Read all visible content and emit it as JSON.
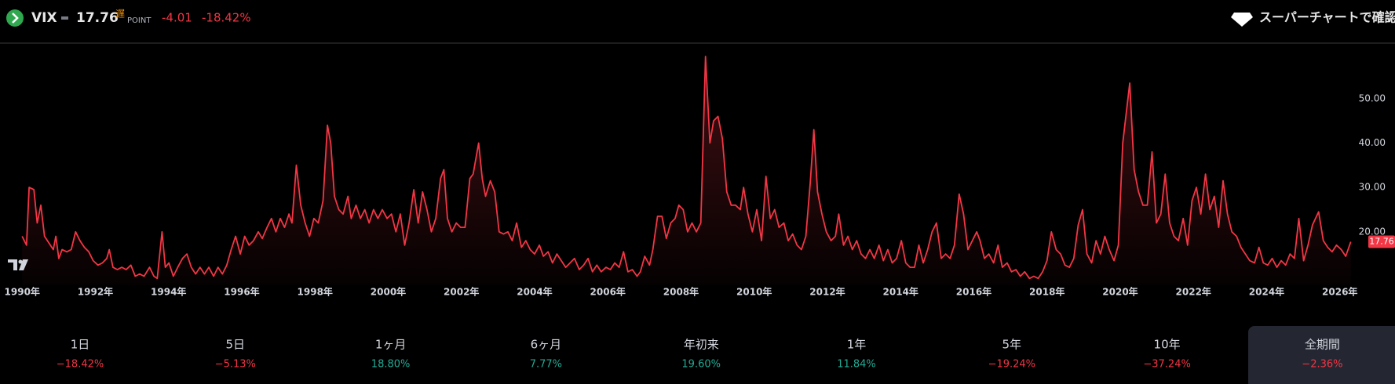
{
  "header": {
    "symbol": "VIX",
    "price": "17.76",
    "delay_badge": "遅",
    "unit": "POINT",
    "change": "-4.01",
    "change_percent": "-18.42%",
    "link": "スーパーチャートで確認"
  },
  "chart_data": {
    "type": "line",
    "x": [
      1990.0,
      1990.12,
      1990.19,
      1990.32,
      1990.41,
      1990.51,
      1990.61,
      1990.73,
      1990.85,
      1990.92,
      1991.0,
      1991.09,
      1991.22,
      1991.34,
      1991.46,
      1991.58,
      1991.7,
      1991.82,
      1991.94,
      1992.07,
      1992.19,
      1992.31,
      1992.38,
      1992.48,
      1992.6,
      1992.72,
      1992.84,
      1992.97,
      1993.09,
      1993.21,
      1993.33,
      1993.48,
      1993.6,
      1993.69,
      1993.82,
      1993.91,
      1994.01,
      1994.13,
      1994.25,
      1994.38,
      1994.5,
      1994.62,
      1994.74,
      1994.86,
      1994.98,
      1995.1,
      1995.23,
      1995.35,
      1995.47,
      1995.59,
      1995.71,
      1995.83,
      1995.96,
      1996.08,
      1996.2,
      1996.32,
      1996.45,
      1996.56,
      1996.69,
      1996.81,
      1996.93,
      1997.05,
      1997.17,
      1997.29,
      1997.37,
      1997.49,
      1997.61,
      1997.73,
      1997.85,
      1997.97,
      1998.09,
      1998.22,
      1998.34,
      1998.43,
      1998.53,
      1998.65,
      1998.77,
      1998.9,
      1998.99,
      1999.12,
      1999.24,
      1999.36,
      1999.48,
      1999.6,
      1999.72,
      1999.84,
      1999.97,
      2000.09,
      2000.21,
      2000.33,
      2000.45,
      2000.57,
      2000.7,
      2000.82,
      2000.94,
      2001.06,
      2001.18,
      2001.3,
      2001.43,
      2001.52,
      2001.62,
      2001.74,
      2001.86,
      2001.98,
      2002.1,
      2002.23,
      2002.32,
      2002.47,
      2002.57,
      2002.66,
      2002.79,
      2002.91,
      2003.03,
      2003.15,
      2003.27,
      2003.39,
      2003.51,
      2003.64,
      2003.76,
      2003.88,
      2004.0,
      2004.13,
      2004.24,
      2004.37,
      2004.49,
      2004.61,
      2004.73,
      2004.85,
      2004.97,
      2005.09,
      2005.22,
      2005.34,
      2005.46,
      2005.58,
      2005.7,
      2005.82,
      2005.95,
      2006.07,
      2006.19,
      2006.31,
      2006.43,
      2006.55,
      2006.67,
      2006.8,
      2006.89,
      2007.01,
      2007.14,
      2007.23,
      2007.36,
      2007.48,
      2007.6,
      2007.72,
      2007.84,
      2007.94,
      2008.06,
      2008.18,
      2008.3,
      2008.42,
      2008.54,
      2008.67,
      2008.79,
      2008.89,
      2009.01,
      2009.13,
      2009.25,
      2009.37,
      2009.49,
      2009.62,
      2009.71,
      2009.83,
      2009.95,
      2010.07,
      2010.2,
      2010.32,
      2010.44,
      2010.56,
      2010.68,
      2010.81,
      2010.93,
      2011.05,
      2011.17,
      2011.29,
      2011.41,
      2011.53,
      2011.63,
      2011.73,
      2011.85,
      2011.97,
      2012.1,
      2012.22,
      2012.31,
      2012.44,
      2012.56,
      2012.68,
      2012.8,
      2012.92,
      2013.04,
      2013.16,
      2013.28,
      2013.41,
      2013.53,
      2013.65,
      2013.77,
      2013.89,
      2014.02,
      2014.14,
      2014.26,
      2014.38,
      2014.5,
      2014.62,
      2014.74,
      2014.86,
      2014.98,
      2015.11,
      2015.23,
      2015.35,
      2015.47,
      2015.6,
      2015.72,
      2015.84,
      2015.96,
      2016.08,
      2016.17,
      2016.29,
      2016.41,
      2016.54,
      2016.66,
      2016.78,
      2016.91,
      2017.03,
      2017.15,
      2017.27,
      2017.39,
      2017.52,
      2017.64,
      2017.76,
      2017.88,
      2018.0,
      2018.12,
      2018.25,
      2018.37,
      2018.49,
      2018.61,
      2018.73,
      2018.85,
      2018.97,
      2019.09,
      2019.22,
      2019.34,
      2019.46,
      2019.58,
      2019.7,
      2019.83,
      2019.95,
      2020.07,
      2020.26,
      2020.38,
      2020.5,
      2020.62,
      2020.74,
      2020.87,
      2020.99,
      2021.11,
      2021.23,
      2021.35,
      2021.47,
      2021.59,
      2021.72,
      2021.84,
      2021.96,
      2022.08,
      2022.2,
      2022.33,
      2022.45,
      2022.57,
      2022.69,
      2022.81,
      2022.93,
      2023.05,
      2023.18,
      2023.3,
      2023.42,
      2023.54,
      2023.67,
      2023.79,
      2023.91,
      2024.03,
      2024.15,
      2024.28,
      2024.4,
      2024.52,
      2024.64,
      2024.76,
      2024.88,
      2025.01,
      2025.13,
      2025.25,
      2025.42,
      2025.55,
      2025.67,
      2025.79,
      2025.91,
      2026.04,
      2026.16,
      2026.3
    ],
    "series": [
      {
        "color": "#f23645",
        "values": [
          19,
          17,
          30,
          29.5,
          22,
          26,
          19,
          17.5,
          16,
          19,
          14,
          16,
          15.5,
          16,
          20,
          18,
          16.5,
          15.5,
          13.5,
          12.5,
          13,
          14,
          16,
          12,
          11.5,
          12,
          11.5,
          12.5,
          10,
          10.5,
          10,
          12,
          10,
          9.5,
          20,
          12,
          13,
          10,
          12,
          14,
          15,
          12,
          10.5,
          12,
          10.5,
          12,
          10,
          12,
          10.5,
          12.5,
          16,
          19,
          15,
          19,
          17,
          18,
          20,
          18.5,
          21,
          23,
          20,
          23,
          21,
          24,
          22,
          35,
          26,
          22,
          19,
          23,
          22,
          27,
          44,
          40,
          28,
          25,
          24,
          28,
          23,
          26,
          23,
          25,
          22,
          25,
          23,
          25,
          23,
          24,
          20,
          24,
          17,
          22,
          29.5,
          22,
          29,
          25,
          20,
          23,
          32,
          34,
          23,
          20,
          22,
          21,
          21,
          32,
          33,
          40,
          32,
          28,
          31.5,
          29,
          20,
          19.5,
          20,
          18,
          22,
          16.5,
          18,
          16,
          15,
          17,
          14.5,
          15.5,
          13,
          15,
          13.5,
          12,
          13,
          14,
          11.5,
          12.5,
          14,
          11,
          12.5,
          11,
          12,
          11.5,
          13,
          12,
          15.5,
          11,
          11.5,
          10,
          11,
          14.5,
          12.5,
          16,
          23.5,
          23.5,
          18.5,
          22,
          23,
          26,
          25,
          20,
          22,
          20,
          22,
          59.5,
          40,
          45,
          46,
          41,
          29,
          26,
          26,
          25,
          30,
          24,
          20,
          25,
          18,
          32.5,
          23,
          25,
          21,
          22,
          18,
          19.5,
          17,
          16,
          19,
          31,
          43,
          29,
          24,
          20,
          18,
          19,
          24,
          17,
          19,
          16,
          18,
          15,
          14,
          16,
          14,
          17,
          13.5,
          16,
          13,
          14,
          18,
          13,
          12,
          12,
          17,
          13,
          16,
          20,
          22,
          14,
          15,
          14,
          17,
          28.5,
          24,
          16,
          18,
          20,
          18,
          14,
          15,
          13,
          17,
          12,
          13,
          11,
          11.5,
          10,
          11,
          9.5,
          10,
          9.5,
          11,
          13.5,
          20,
          16,
          15,
          12.5,
          12,
          14,
          21.5,
          25,
          15,
          13,
          18,
          15,
          19,
          16,
          13.5,
          17,
          40,
          53.5,
          34,
          29,
          26,
          26,
          38,
          22,
          24,
          33,
          22,
          19,
          18,
          23,
          17,
          27,
          30,
          24,
          33,
          25,
          28,
          21,
          31.5,
          24,
          20,
          19,
          16.5,
          15,
          13.5,
          13,
          16.5,
          13,
          12.5,
          14,
          12,
          13.5,
          12.5,
          15,
          14,
          23,
          13.5,
          17,
          21.5,
          24.5,
          18,
          16.5,
          15.5,
          17,
          16,
          14.5,
          17.76
        ]
      }
    ],
    "xlim": [
      1989.6,
      2026.6
    ],
    "ylim": [
      8,
      62
    ],
    "xticks": [
      {
        "value": 1990,
        "label": "1990年"
      },
      {
        "value": 1992,
        "label": "1992年"
      },
      {
        "value": 1994,
        "label": "1994年"
      },
      {
        "value": 1996,
        "label": "1996年"
      },
      {
        "value": 1998,
        "label": "1998年"
      },
      {
        "value": 2000,
        "label": "2000年"
      },
      {
        "value": 2002,
        "label": "2002年"
      },
      {
        "value": 2004,
        "label": "2004年"
      },
      {
        "value": 2006,
        "label": "2006年"
      },
      {
        "value": 2008,
        "label": "2008年"
      },
      {
        "value": 2010,
        "label": "2010年"
      },
      {
        "value": 2012,
        "label": "2012年"
      },
      {
        "value": 2014,
        "label": "2014年"
      },
      {
        "value": 2016,
        "label": "2016年"
      },
      {
        "value": 2018,
        "label": "2018年"
      },
      {
        "value": 2020,
        "label": "2020年"
      },
      {
        "value": 2022,
        "label": "2022年"
      },
      {
        "value": 2024,
        "label": "2024年"
      },
      {
        "value": 2026,
        "label": "2026年"
      }
    ],
    "yticks": [
      {
        "value": 20,
        "label": "20.00"
      },
      {
        "value": 30,
        "label": "30.00"
      },
      {
        "value": 40,
        "label": "40.00"
      },
      {
        "value": 50,
        "label": "50.00"
      }
    ],
    "grid": false
  },
  "periods": [
    {
      "label": "1日",
      "change": "−18.42%"
    },
    {
      "label": "5日",
      "change": "−5.13%"
    },
    {
      "label": "1ヶ月",
      "change": "18.80%"
    },
    {
      "label": "6ヶ月",
      "change": "7.77%"
    },
    {
      "label": "年初来",
      "change": "19.60%"
    },
    {
      "label": "1年",
      "change": "11.84%"
    },
    {
      "label": "5年",
      "change": "−19.24%"
    },
    {
      "label": "10年",
      "change": "−37.24%"
    },
    {
      "label": "全期間",
      "change": "−2.36%"
    }
  ]
}
